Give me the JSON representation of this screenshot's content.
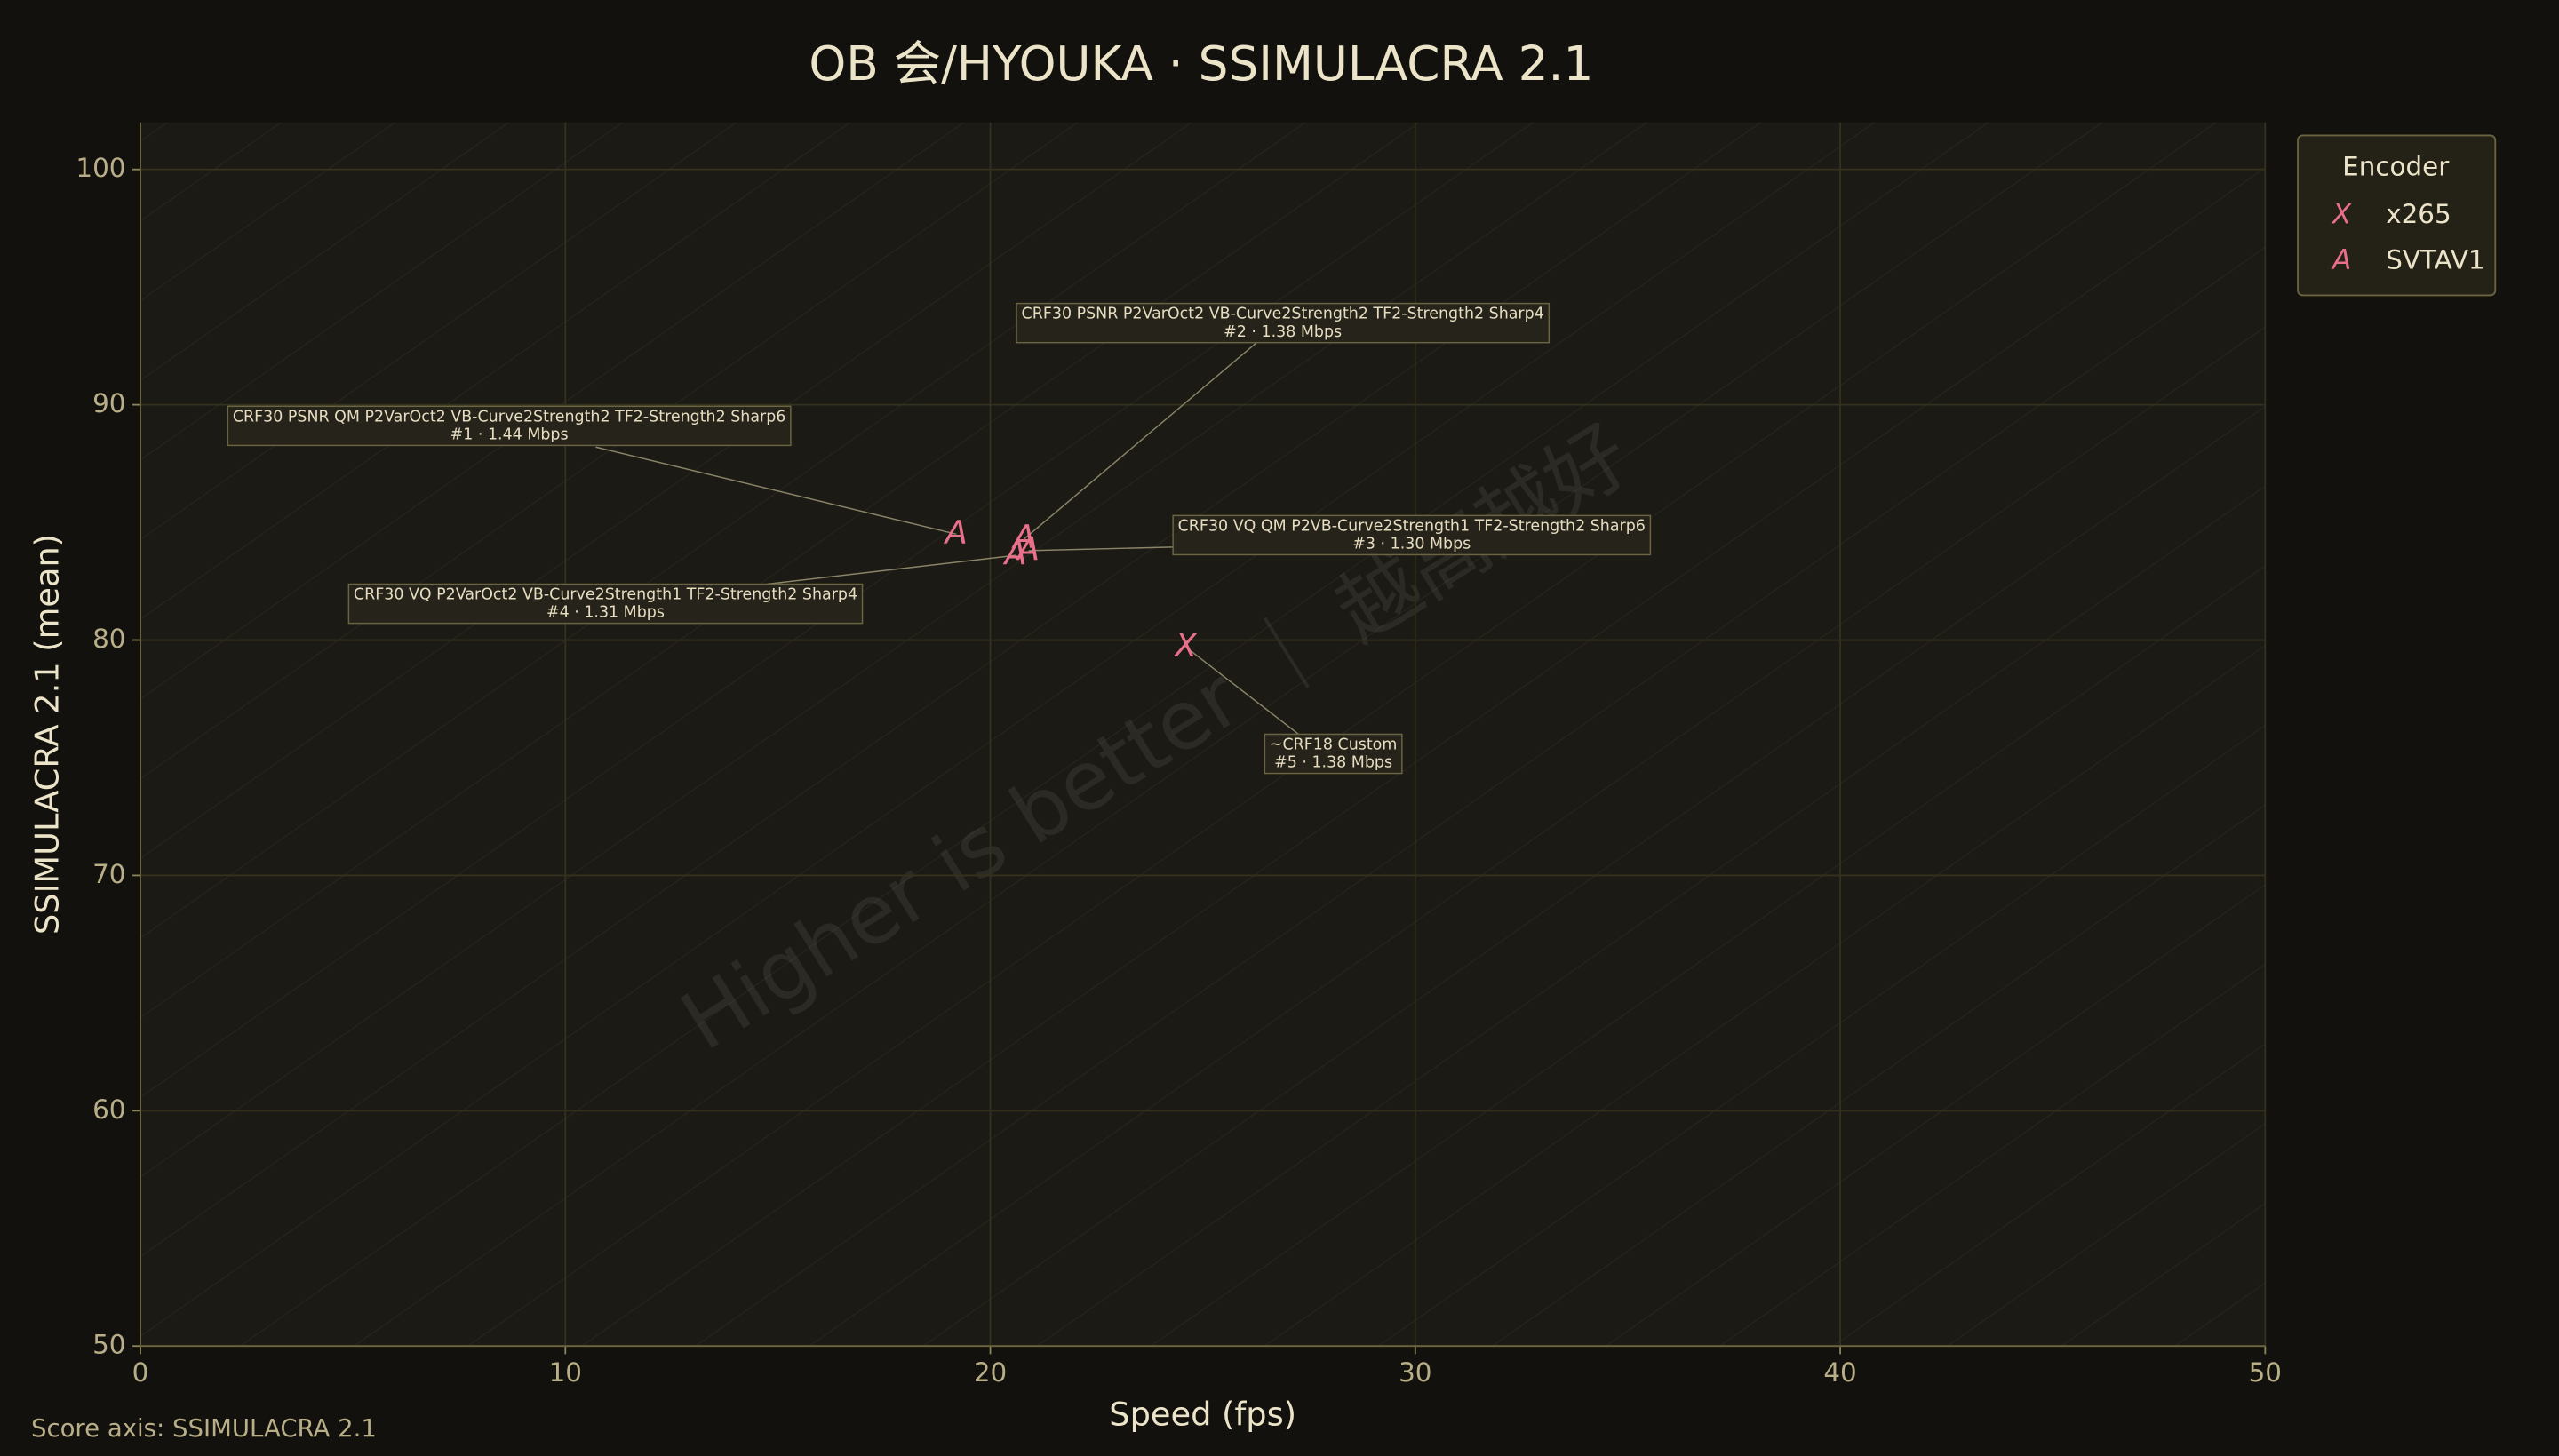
{
  "chart_data": {
    "type": "scatter",
    "title": "OB 会/HYOUKA · SSIMULACRA 2.1",
    "x_label": "Speed (fps)",
    "y_label": "SSIMULACRA 2.1 (mean)",
    "watermark": "Higher is better ｜ 越高越好",
    "xlim": [
      0,
      50
    ],
    "ylim": [
      50,
      102
    ],
    "xticks": [
      0,
      10,
      20,
      30,
      40,
      50
    ],
    "yticks": [
      50,
      60,
      70,
      80,
      90,
      100
    ],
    "grid": true,
    "legend": {
      "title": "Encoder",
      "position": "upper right outside"
    },
    "series": [
      {
        "name": "x265",
        "marker": "X",
        "color": "#e8708a",
        "x": [
          24.6
        ],
        "values": [
          79.7
        ],
        "annotations": [
          {
            "text": "~CRF18 Custom",
            "detail": "#5 · 1.38 Mbps"
          }
        ]
      },
      {
        "name": "SVTAV1",
        "marker": "A",
        "color": "#e8708a",
        "x": [
          19.2,
          20.8,
          20.9,
          20.6
        ],
        "values": [
          84.5,
          84.3,
          83.8,
          83.6
        ],
        "annotations": [
          {
            "text": "CRF30 PSNR QM P2VarOct2 VB-Curve2Strength2 TF2-Strength2 Sharp6",
            "detail": "#1 · 1.44 Mbps"
          },
          {
            "text": "CRF30 PSNR P2VarOct2 VB-Curve2Strength2 TF2-Strength2 Sharp4",
            "detail": "#2 · 1.38 Mbps"
          },
          {
            "text": "CRF30 VQ QM P2VB-Curve2Strength1 TF2-Strength2 Sharp6",
            "detail": "#3 · 1.30 Mbps"
          },
          {
            "text": "CRF30 VQ P2VarOct2 VB-Curve2Strength1 TF2-Strength2 Sharp4",
            "detail": "#4 · 1.31 Mbps"
          }
        ]
      }
    ]
  },
  "footer": "Score axis: SSIMULACRA 2.1"
}
